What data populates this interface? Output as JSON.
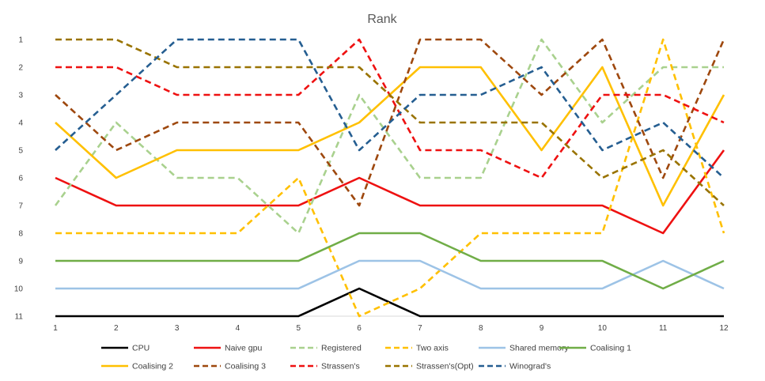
{
  "chart_data": {
    "type": "line",
    "title": "Rank",
    "xlabel": "",
    "ylabel": "",
    "x": [
      1,
      2,
      3,
      4,
      5,
      6,
      7,
      8,
      9,
      10,
      11,
      12
    ],
    "ylim": [
      11,
      1
    ],
    "y_inverted": true,
    "yticks": [
      1,
      2,
      3,
      4,
      5,
      6,
      7,
      8,
      9,
      10,
      11
    ],
    "grid": false,
    "legend_position": "bottom",
    "series": [
      {
        "name": "CPU",
        "color": "#000000",
        "dash": "solid",
        "values": [
          11,
          11,
          11,
          11,
          11,
          10,
          11,
          11,
          11,
          11,
          11,
          11
        ]
      },
      {
        "name": "Naive gpu",
        "color": "#ee1111",
        "dash": "solid",
        "values": [
          6,
          7,
          7,
          7,
          7,
          6,
          7,
          7,
          7,
          7,
          8,
          5
        ]
      },
      {
        "name": "Registered",
        "color": "#a9d18e",
        "dash": "dashed",
        "values": [
          7,
          4,
          6,
          6,
          8,
          3,
          6,
          6,
          1,
          4,
          2,
          2
        ]
      },
      {
        "name": "Two axis",
        "color": "#ffc000",
        "dash": "dashed",
        "values": [
          8,
          8,
          8,
          8,
          6,
          11,
          10,
          8,
          8,
          8,
          1,
          8
        ]
      },
      {
        "name": "Shared memory",
        "color": "#9dc3e6",
        "dash": "solid",
        "values": [
          10,
          10,
          10,
          10,
          10,
          9,
          9,
          10,
          10,
          10,
          9,
          10
        ]
      },
      {
        "name": "Coalising 1",
        "color": "#70ad47",
        "dash": "solid",
        "values": [
          9,
          9,
          9,
          9,
          9,
          8,
          8,
          9,
          9,
          9,
          10,
          9
        ]
      },
      {
        "name": "Coalising 2",
        "color": "#ffc000",
        "dash": "solid",
        "values": [
          4,
          6,
          5,
          5,
          5,
          4,
          2,
          2,
          5,
          2,
          7,
          3
        ]
      },
      {
        "name": "Coalising 3",
        "color": "#9e480e",
        "dash": "dashed",
        "values": [
          3,
          5,
          4,
          4,
          4,
          7,
          1,
          1,
          3,
          1,
          6,
          1
        ]
      },
      {
        "name": "Strassen's",
        "color": "#ee1111",
        "dash": "dashed",
        "values": [
          2,
          2,
          3,
          3,
          3,
          1,
          5,
          5,
          6,
          3,
          3,
          4
        ]
      },
      {
        "name": "Strassen's(Opt)",
        "color": "#997300",
        "dash": "dashed",
        "values": [
          1,
          1,
          2,
          2,
          2,
          2,
          4,
          4,
          4,
          6,
          5,
          7
        ]
      },
      {
        "name": "Winograd's",
        "color": "#255e91",
        "dash": "dashed",
        "values": [
          5,
          3,
          1,
          1,
          1,
          5,
          3,
          3,
          2,
          5,
          4,
          6
        ]
      }
    ]
  }
}
